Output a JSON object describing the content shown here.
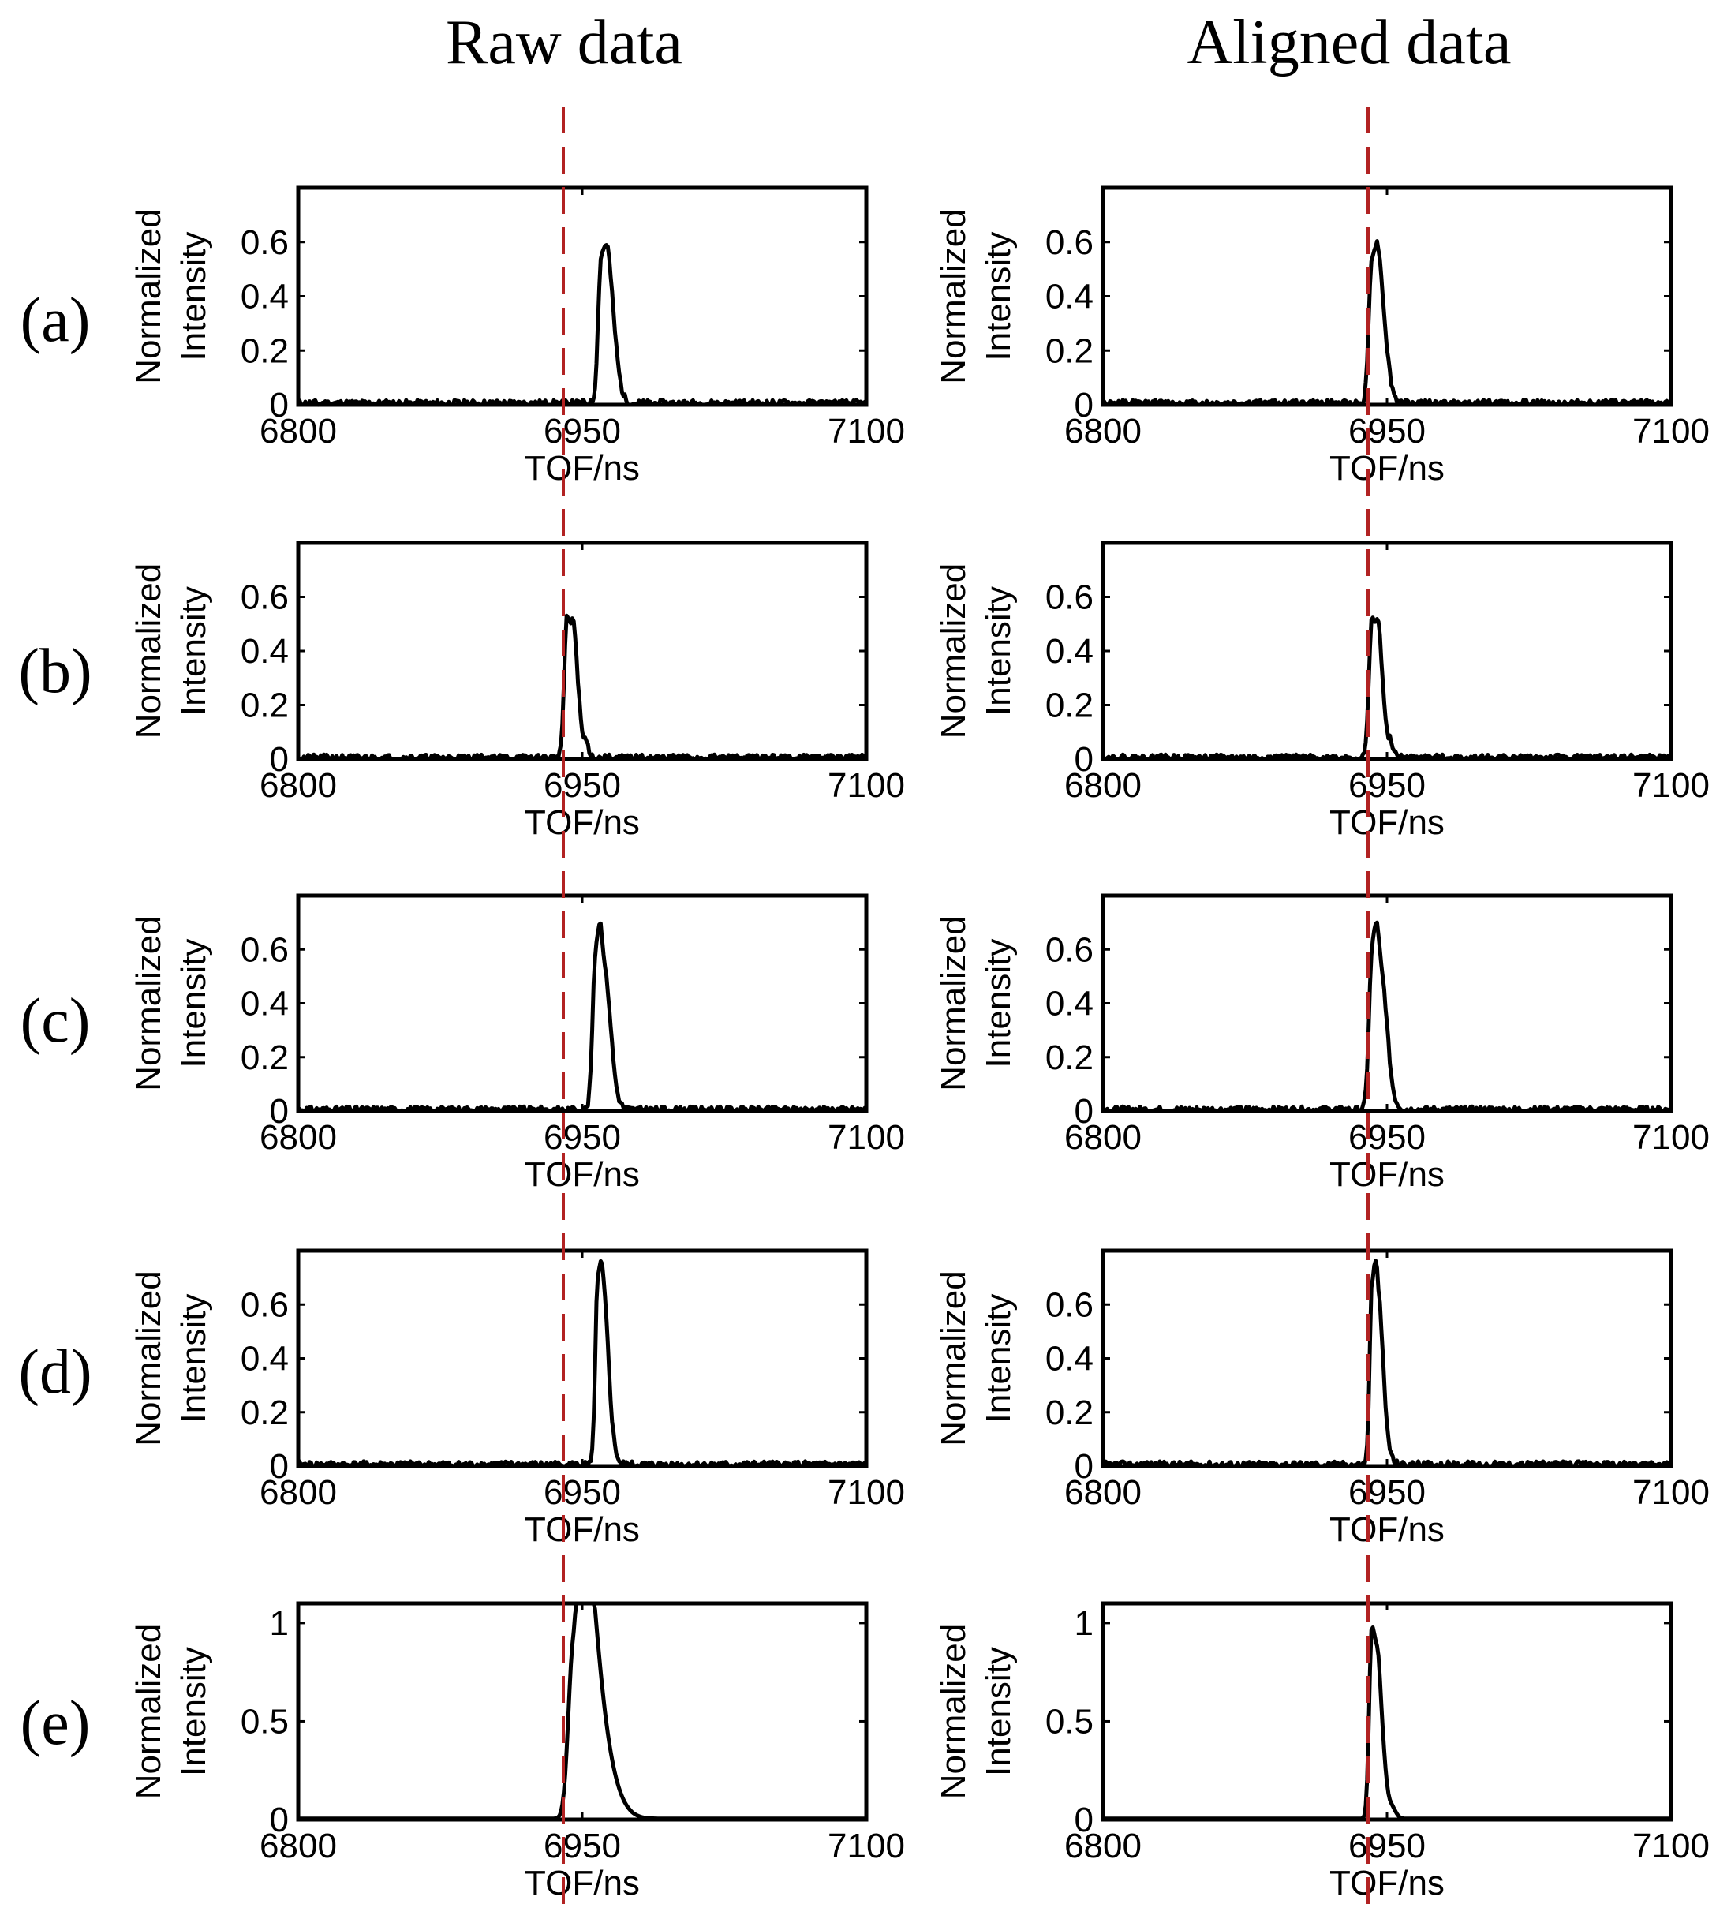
{
  "figure": {
    "column_titles": [
      "Raw data",
      "Aligned data"
    ],
    "row_labels": [
      "(a)",
      "(b)",
      "(c)",
      "(d)",
      "(e)"
    ],
    "reference_line_x": 6940,
    "colors": {
      "series": "#000000",
      "reference_line": "#b22222"
    }
  },
  "chart_data": [
    {
      "type": "line",
      "id": "raw-a",
      "title": "Raw data",
      "row": "(a)",
      "xlabel": "TOF/ns",
      "ylabel": "Normalized Intensity",
      "xlim": [
        6800,
        7100
      ],
      "ylim": [
        0,
        0.8
      ],
      "xticks": [
        6800,
        6950,
        7100
      ],
      "yticks": [
        0,
        0.2,
        0.4,
        0.6
      ],
      "ytick_labels": [
        "0",
        "0.2",
        "0.4",
        "0.6"
      ],
      "peaks": [
        [
          6960,
          0.53,
          1.6,
          4.5
        ],
        [
          6964,
          0.19,
          1.8,
          3.5
        ]
      ],
      "noise": 0.013,
      "seed": 11
    },
    {
      "type": "line",
      "id": "aligned-a",
      "title": "Aligned data",
      "row": "(a)",
      "xlabel": "TOF/ns",
      "ylabel": "Normalized Intensity",
      "xlim": [
        6800,
        7100
      ],
      "ylim": [
        0,
        0.8
      ],
      "xticks": [
        6800,
        6950,
        7100
      ],
      "yticks": [
        0,
        0.2,
        0.4,
        0.6
      ],
      "ytick_labels": [
        "0",
        "0.2",
        "0.4",
        "0.6"
      ],
      "peaks": [
        [
          6942,
          0.53,
          1.6,
          4.5
        ],
        [
          6946,
          0.19,
          1.8,
          3.5
        ]
      ],
      "noise": 0.013,
      "seed": 12
    },
    {
      "type": "line",
      "id": "raw-b",
      "title": "Raw data",
      "row": "(b)",
      "xlabel": "TOF/ns",
      "ylabel": "Normalized Intensity",
      "xlim": [
        6800,
        7100
      ],
      "ylim": [
        0,
        0.8
      ],
      "xticks": [
        6800,
        6950,
        7100
      ],
      "yticks": [
        0,
        0.2,
        0.4,
        0.6
      ],
      "ytick_labels": [
        "0",
        "0.2",
        "0.4",
        "0.6"
      ],
      "peaks": [
        [
          6942,
          0.52,
          1.5,
          3
        ],
        [
          6946,
          0.26,
          1.3,
          2.5
        ],
        [
          6952,
          0.05,
          1,
          1.5
        ]
      ],
      "noise": 0.012,
      "seed": 21
    },
    {
      "type": "line",
      "id": "aligned-b",
      "title": "Aligned data",
      "row": "(b)",
      "xlabel": "TOF/ns",
      "ylabel": "Normalized Intensity",
      "xlim": [
        6800,
        7100
      ],
      "ylim": [
        0,
        0.8
      ],
      "xticks": [
        6800,
        6950,
        7100
      ],
      "yticks": [
        0,
        0.2,
        0.4,
        0.6
      ],
      "ytick_labels": [
        "0",
        "0.2",
        "0.4",
        "0.6"
      ],
      "peaks": [
        [
          6942,
          0.52,
          1.5,
          3
        ],
        [
          6946,
          0.26,
          1.3,
          2.5
        ],
        [
          6952,
          0.05,
          1,
          1.5
        ]
      ],
      "noise": 0.012,
      "seed": 22
    },
    {
      "type": "line",
      "id": "raw-c",
      "title": "Raw data",
      "row": "(c)",
      "xlabel": "TOF/ns",
      "ylabel": "Normalized Intensity",
      "xlim": [
        6800,
        7100
      ],
      "ylim": [
        0,
        0.8
      ],
      "xticks": [
        6800,
        6950,
        7100
      ],
      "yticks": [
        0,
        0.2,
        0.4,
        0.6
      ],
      "ytick_labels": [
        "0",
        "0.2",
        "0.4",
        "0.6"
      ],
      "peaks": [
        [
          6957,
          0.53,
          1.6,
          4.5
        ],
        [
          6960,
          0.25,
          1.8,
          4.5
        ],
        [
          6964,
          0.08,
          1.2,
          2
        ]
      ],
      "noise": 0.012,
      "seed": 31
    },
    {
      "type": "line",
      "id": "aligned-c",
      "title": "Aligned data",
      "row": "(c)",
      "xlabel": "TOF/ns",
      "ylabel": "Normalized Intensity",
      "xlim": [
        6800,
        7100
      ],
      "ylim": [
        0,
        0.8
      ],
      "xticks": [
        6800,
        6950,
        7100
      ],
      "yticks": [
        0,
        0.2,
        0.4,
        0.6
      ],
      "ytick_labels": [
        "0",
        "0.2",
        "0.4",
        "0.6"
      ],
      "peaks": [
        [
          6942,
          0.53,
          1.6,
          4.5
        ],
        [
          6945,
          0.25,
          1.8,
          4.5
        ],
        [
          6949,
          0.08,
          1.2,
          2
        ]
      ],
      "noise": 0.012,
      "seed": 32
    },
    {
      "type": "line",
      "id": "raw-d",
      "title": "Raw data",
      "row": "(d)",
      "xlabel": "TOF/ns",
      "ylabel": "Normalized Intensity",
      "xlim": [
        6800,
        7100
      ],
      "ylim": [
        0,
        0.8
      ],
      "xticks": [
        6800,
        6950,
        7100
      ],
      "yticks": [
        0,
        0.2,
        0.4,
        0.6
      ],
      "ytick_labels": [
        "0",
        "0.2",
        "0.4",
        "0.6"
      ],
      "peaks": [
        [
          6958,
          0.63,
          1.2,
          3.5
        ],
        [
          6961,
          0.26,
          1.6,
          3.5
        ],
        [
          6963,
          0.06,
          1,
          1.5
        ]
      ],
      "noise": 0.013,
      "seed": 41
    },
    {
      "type": "line",
      "id": "aligned-d",
      "title": "Aligned data",
      "row": "(d)",
      "xlabel": "TOF/ns",
      "ylabel": "Normalized Intensity",
      "xlim": [
        6800,
        7100
      ],
      "ylim": [
        0,
        0.8
      ],
      "xticks": [
        6800,
        6950,
        7100
      ],
      "yticks": [
        0,
        0.2,
        0.4,
        0.6
      ],
      "ytick_labels": [
        "0",
        "0.2",
        "0.4",
        "0.6"
      ],
      "peaks": [
        [
          6942,
          0.63,
          1.2,
          3.5
        ],
        [
          6945,
          0.26,
          1.6,
          3.5
        ],
        [
          6947,
          0.06,
          1,
          1.5
        ]
      ],
      "noise": 0.013,
      "seed": 42
    },
    {
      "type": "line",
      "id": "raw-e",
      "title": "Raw data",
      "row": "(e)",
      "xlabel": "TOF/ns",
      "ylabel": "Normalized Intensity",
      "xlim": [
        6800,
        7100
      ],
      "ylim": [
        0,
        1.1
      ],
      "xticks": [
        6800,
        6950,
        7100
      ],
      "yticks": [
        0,
        0.5,
        1
      ],
      "ytick_labels": [
        "0",
        "0.5",
        "1"
      ],
      "peaks": [
        [
          6945,
          0.8,
          2.5,
          7
        ],
        [
          6950,
          0.72,
          2.5,
          7
        ],
        [
          6956,
          0.42,
          4,
          9
        ]
      ],
      "noise": 0,
      "seed": 51
    },
    {
      "type": "line",
      "id": "aligned-e",
      "title": "Aligned data",
      "row": "(e)",
      "xlabel": "TOF/ns",
      "ylabel": "Normalized Intensity",
      "xlim": [
        6800,
        7100
      ],
      "ylim": [
        0,
        1.1
      ],
      "xticks": [
        6800,
        6950,
        7100
      ],
      "yticks": [
        0,
        0.5,
        1
      ],
      "ytick_labels": [
        "0",
        "0.5",
        "1"
      ],
      "peaks": [
        [
          6942,
          0.97,
          1.4,
          3
        ],
        [
          6946,
          0.36,
          1.4,
          3
        ],
        [
          6953,
          0.04,
          1.4,
          2
        ]
      ],
      "noise": 0,
      "seed": 52
    }
  ]
}
